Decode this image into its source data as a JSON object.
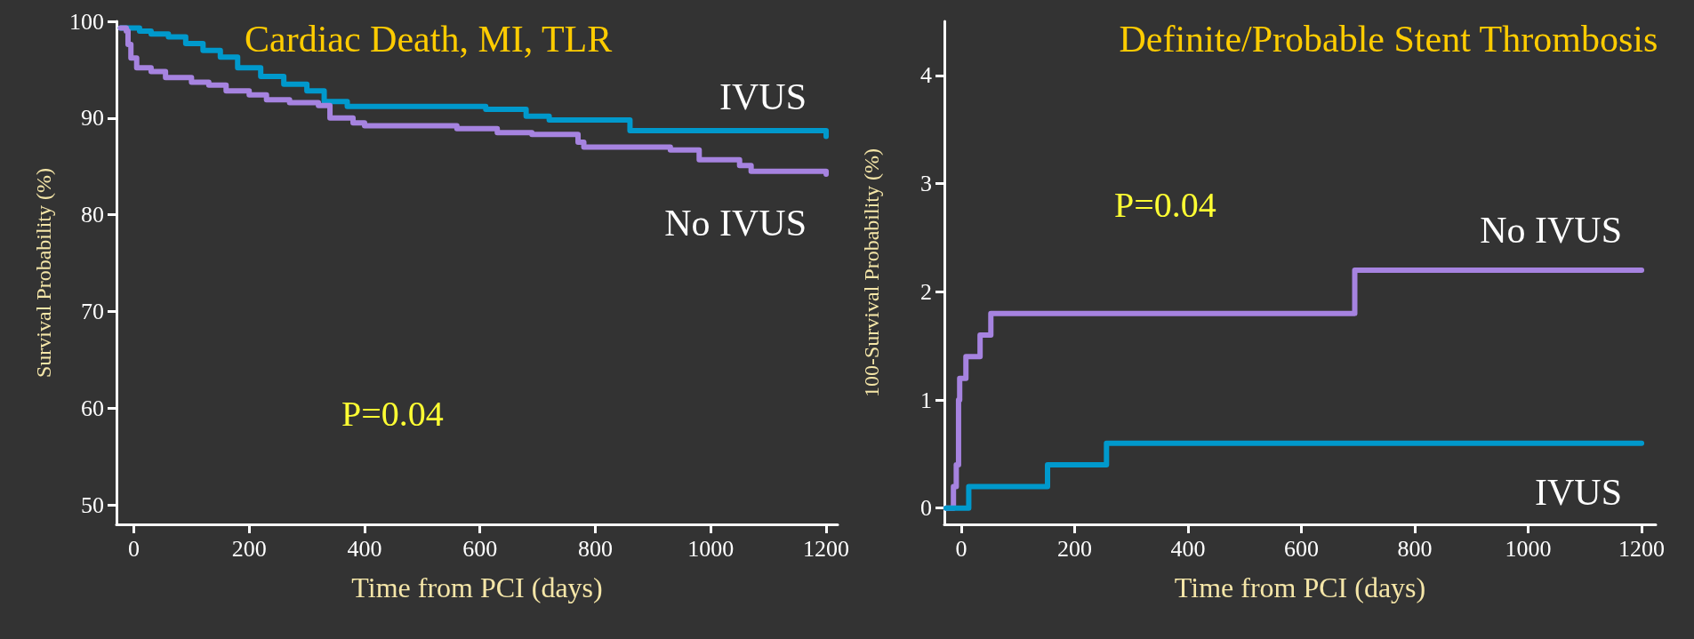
{
  "chart_data": [
    {
      "type": "step",
      "title": "Cardiac Death, MI, TLR",
      "xlabel": "Time from PCI (days)",
      "ylabel": "Survival Probability (%)",
      "annotations": [
        "P=0.04"
      ],
      "xlim": [
        -30,
        1220
      ],
      "xticks": [
        0,
        200,
        400,
        600,
        800,
        1000,
        1200
      ],
      "ylim": [
        48,
        100
      ],
      "yticks": [
        50,
        60,
        70,
        80,
        90,
        100
      ],
      "grid": false,
      "legend": false,
      "marker": "none",
      "line_style": "solid",
      "series": [
        {
          "name": "IVUS",
          "color": "#0099cc",
          "x": [
            -23,
            10,
            30,
            60,
            90,
            120,
            150,
            180,
            220,
            260,
            300,
            330,
            370,
            610,
            680,
            720,
            860,
            1200
          ],
          "values": [
            99.3,
            99.0,
            98.7,
            98.4,
            97.7,
            97.0,
            96.3,
            95.2,
            94.3,
            93.5,
            92.8,
            91.7,
            91.2,
            90.9,
            90.2,
            89.8,
            88.7,
            88.1
          ]
        },
        {
          "name": "No IVUS",
          "color": "#a683e0",
          "x": [
            -23,
            -13,
            -10,
            -5,
            5,
            30,
            55,
            100,
            130,
            160,
            200,
            230,
            270,
            320,
            340,
            380,
            400,
            560,
            630,
            690,
            770,
            780,
            930,
            980,
            1050,
            1070,
            1200
          ],
          "values": [
            99.3,
            99.0,
            97.6,
            96.2,
            95.2,
            94.8,
            94.2,
            93.7,
            93.4,
            92.8,
            92.4,
            91.9,
            91.6,
            91.3,
            90.0,
            89.5,
            89.2,
            88.9,
            88.5,
            88.3,
            87.5,
            87.0,
            86.7,
            85.7,
            85.1,
            84.5,
            84.2
          ]
        }
      ]
    },
    {
      "type": "step",
      "title": "Definite/Probable Stent Thrombosis",
      "xlabel": "Time from PCI (days)",
      "ylabel": "100-Survival Probability (%)",
      "annotations": [
        "P=0.04"
      ],
      "xlim": [
        -30,
        1225
      ],
      "xticks": [
        0,
        200,
        400,
        600,
        800,
        1000,
        1200
      ],
      "ylim": [
        -0.15,
        4.5
      ],
      "yticks": [
        0,
        1,
        2,
        3,
        4
      ],
      "grid": false,
      "legend": false,
      "marker": "none",
      "line_style": "solid",
      "series": [
        {
          "name": "No IVUS",
          "color": "#a683e0",
          "x": [
            -27,
            -14,
            -9,
            -5,
            -3,
            8,
            33,
            52,
            694,
            1200
          ],
          "values": [
            0,
            0.2,
            0.4,
            1.0,
            1.2,
            1.4,
            1.6,
            1.8,
            2.2,
            2.2
          ]
        },
        {
          "name": "IVUS",
          "color": "#0099cc",
          "x": [
            -27,
            13,
            152,
            256,
            1200
          ],
          "values": [
            0,
            0.2,
            0.4,
            0.6,
            0.6
          ]
        }
      ]
    }
  ]
}
